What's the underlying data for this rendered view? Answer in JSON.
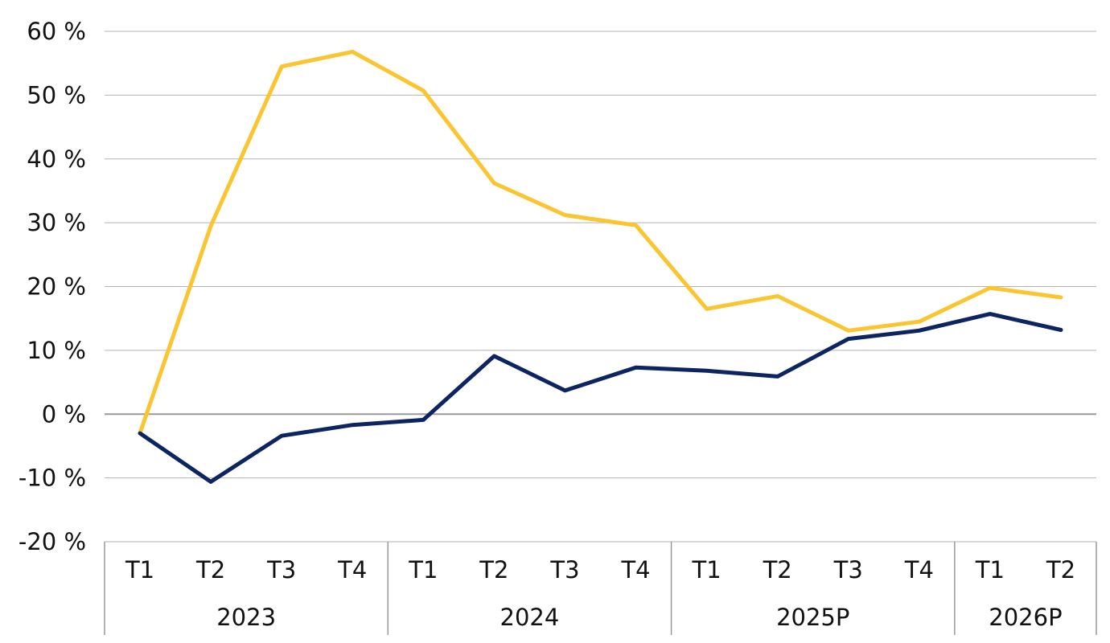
{
  "chart_data": {
    "type": "line",
    "title": "",
    "xlabel": "",
    "ylabel": "",
    "ylim": [
      -20,
      60
    ],
    "yticks": [
      60,
      50,
      40,
      30,
      20,
      10,
      0,
      -10,
      -20
    ],
    "ytick_labels": [
      "60 %",
      "50 %",
      "40 %",
      "30 %",
      "20 %",
      "10 %",
      "0 %",
      "-10 %",
      "-20 %"
    ],
    "grid": true,
    "legend": "none",
    "categories": [
      "T1",
      "T2",
      "T3",
      "T4",
      "T1",
      "T2",
      "T3",
      "T4",
      "T1",
      "T2",
      "T3",
      "T4",
      "T1",
      "T2"
    ],
    "groups": [
      {
        "label": "2023",
        "count": 4
      },
      {
        "label": "2024",
        "count": 4
      },
      {
        "label": "2025P",
        "count": 4
      },
      {
        "label": "2026P",
        "count": 2
      }
    ],
    "series": [
      {
        "color": "#fbc531",
        "values": [
          -3,
          29.5,
          54.5,
          56.8,
          50.7,
          36.2,
          31.2,
          29.6,
          16.5,
          18.5,
          13.1,
          14.5,
          19.8,
          18.3
        ]
      },
      {
        "color": "#0c2461",
        "values": [
          -3,
          -10.6,
          -3.4,
          -1.7,
          -0.9,
          9.1,
          3.7,
          7.3,
          6.8,
          5.9,
          11.8,
          13.1,
          15.7,
          13.2
        ]
      }
    ]
  }
}
